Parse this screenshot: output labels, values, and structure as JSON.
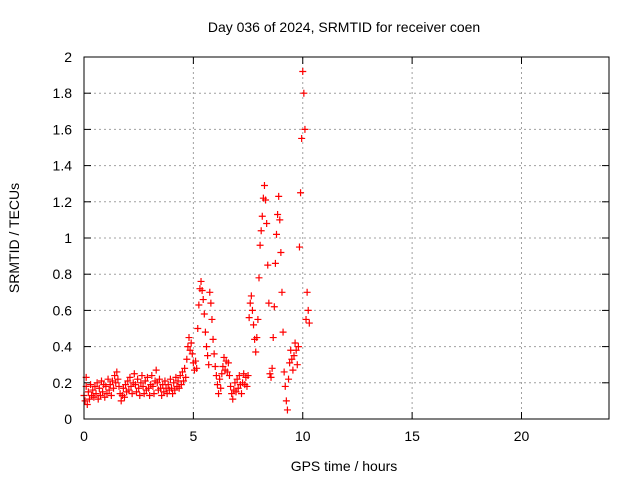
{
  "chart_data": {
    "type": "scatter",
    "title": "Day 036 of 2024, SRMTID for receiver coen",
    "xlabel": "GPS time / hours",
    "ylabel": "SRMTID / TECUs",
    "xlim": [
      0,
      24
    ],
    "ylim": [
      0,
      2
    ],
    "xticks": [
      0,
      5,
      10,
      15,
      20
    ],
    "xtick_labels": [
      "0",
      "5",
      "10",
      "15",
      "20"
    ],
    "yticks": [
      0,
      0.2,
      0.4,
      0.6,
      0.8,
      1,
      1.2,
      1.4,
      1.6,
      1.8,
      2
    ],
    "ytick_labels": [
      "0",
      "0.2",
      "0.4",
      "0.6",
      "0.8",
      "1",
      "1.2",
      "1.4",
      "1.6",
      "1.8",
      "2"
    ],
    "grid": true,
    "marker": "+",
    "series": [
      {
        "name": "SRMTID",
        "color": "#ff0000",
        "points": [
          [
            0.0,
            0.13
          ],
          [
            0.05,
            0.1
          ],
          [
            0.1,
            0.18
          ],
          [
            0.1,
            0.23
          ],
          [
            0.15,
            0.08
          ],
          [
            0.2,
            0.15
          ],
          [
            0.25,
            0.11
          ],
          [
            0.3,
            0.19
          ],
          [
            0.35,
            0.13
          ],
          [
            0.4,
            0.16
          ],
          [
            0.45,
            0.12
          ],
          [
            0.5,
            0.18
          ],
          [
            0.55,
            0.14
          ],
          [
            0.6,
            0.2
          ],
          [
            0.65,
            0.11
          ],
          [
            0.7,
            0.17
          ],
          [
            0.75,
            0.13
          ],
          [
            0.8,
            0.21
          ],
          [
            0.85,
            0.15
          ],
          [
            0.9,
            0.19
          ],
          [
            0.95,
            0.12
          ],
          [
            1.0,
            0.18
          ],
          [
            1.05,
            0.14
          ],
          [
            1.1,
            0.22
          ],
          [
            1.15,
            0.16
          ],
          [
            1.2,
            0.19
          ],
          [
            1.25,
            0.13
          ],
          [
            1.3,
            0.21
          ],
          [
            1.35,
            0.17
          ],
          [
            1.4,
            0.24
          ],
          [
            1.45,
            0.2
          ],
          [
            1.5,
            0.26
          ],
          [
            1.55,
            0.22
          ],
          [
            1.6,
            0.18
          ],
          [
            1.65,
            0.14
          ],
          [
            1.7,
            0.1
          ],
          [
            1.75,
            0.13
          ],
          [
            1.8,
            0.17
          ],
          [
            1.85,
            0.12
          ],
          [
            1.9,
            0.19
          ],
          [
            1.95,
            0.15
          ],
          [
            2.0,
            0.21
          ],
          [
            2.05,
            0.16
          ],
          [
            2.1,
            0.23
          ],
          [
            2.15,
            0.18
          ],
          [
            2.2,
            0.14
          ],
          [
            2.25,
            0.2
          ],
          [
            2.3,
            0.25
          ],
          [
            2.35,
            0.19
          ],
          [
            2.4,
            0.15
          ],
          [
            2.45,
            0.22
          ],
          [
            2.5,
            0.17
          ],
          [
            2.55,
            0.13
          ],
          [
            2.6,
            0.2
          ],
          [
            2.65,
            0.24
          ],
          [
            2.7,
            0.18
          ],
          [
            2.75,
            0.14
          ],
          [
            2.8,
            0.21
          ],
          [
            2.85,
            0.16
          ],
          [
            2.9,
            0.23
          ],
          [
            2.95,
            0.17
          ],
          [
            3.0,
            0.13
          ],
          [
            3.05,
            0.19
          ],
          [
            3.1,
            0.24
          ],
          [
            3.15,
            0.18
          ],
          [
            3.2,
            0.14
          ],
          [
            3.25,
            0.21
          ],
          [
            3.3,
            0.27
          ],
          [
            3.35,
            0.2
          ],
          [
            3.4,
            0.16
          ],
          [
            3.45,
            0.22
          ],
          [
            3.5,
            0.17
          ],
          [
            3.55,
            0.13
          ],
          [
            3.6,
            0.19
          ],
          [
            3.65,
            0.15
          ],
          [
            3.7,
            0.21
          ],
          [
            3.75,
            0.17
          ],
          [
            3.8,
            0.14
          ],
          [
            3.85,
            0.19
          ],
          [
            3.9,
            0.16
          ],
          [
            3.95,
            0.22
          ],
          [
            4.0,
            0.17
          ],
          [
            4.05,
            0.14
          ],
          [
            4.1,
            0.2
          ],
          [
            4.15,
            0.16
          ],
          [
            4.2,
            0.23
          ],
          [
            4.25,
            0.18
          ],
          [
            4.3,
            0.21
          ],
          [
            4.35,
            0.17
          ],
          [
            4.4,
            0.24
          ],
          [
            4.45,
            0.19
          ],
          [
            4.5,
            0.26
          ],
          [
            4.55,
            0.21
          ],
          [
            4.6,
            0.28
          ],
          [
            4.65,
            0.23
          ],
          [
            4.7,
            0.33
          ],
          [
            4.75,
            0.4
          ],
          [
            4.8,
            0.45
          ],
          [
            4.85,
            0.38
          ],
          [
            4.9,
            0.42
          ],
          [
            4.95,
            0.36
          ],
          [
            5.0,
            0.31
          ],
          [
            5.05,
            0.27
          ],
          [
            5.1,
            0.32
          ],
          [
            5.15,
            0.28
          ],
          [
            5.2,
            0.5
          ],
          [
            5.25,
            0.63
          ],
          [
            5.3,
            0.72
          ],
          [
            5.35,
            0.76
          ],
          [
            5.4,
            0.71
          ],
          [
            5.45,
            0.66
          ],
          [
            5.5,
            0.58
          ],
          [
            5.55,
            0.48
          ],
          [
            5.6,
            0.4
          ],
          [
            5.65,
            0.35
          ],
          [
            5.7,
            0.3
          ],
          [
            5.75,
            0.7
          ],
          [
            5.8,
            0.64
          ],
          [
            5.85,
            0.55
          ],
          [
            5.9,
            0.44
          ],
          [
            5.95,
            0.36
          ],
          [
            6.0,
            0.29
          ],
          [
            6.05,
            0.24
          ],
          [
            6.1,
            0.19
          ],
          [
            6.15,
            0.14
          ],
          [
            6.2,
            0.22
          ],
          [
            6.25,
            0.17
          ],
          [
            6.3,
            0.25
          ],
          [
            6.35,
            0.29
          ],
          [
            6.4,
            0.34
          ],
          [
            6.45,
            0.27
          ],
          [
            6.5,
            0.32
          ],
          [
            6.55,
            0.26
          ],
          [
            6.6,
            0.31
          ],
          [
            6.65,
            0.24
          ],
          [
            6.7,
            0.18
          ],
          [
            6.75,
            0.14
          ],
          [
            6.8,
            0.11
          ],
          [
            6.85,
            0.16
          ],
          [
            6.9,
            0.2
          ],
          [
            6.95,
            0.15
          ],
          [
            7.0,
            0.22
          ],
          [
            7.05,
            0.17
          ],
          [
            7.1,
            0.24
          ],
          [
            7.15,
            0.19
          ],
          [
            7.2,
            0.14
          ],
          [
            7.25,
            0.2
          ],
          [
            7.3,
            0.25
          ],
          [
            7.35,
            0.19
          ],
          [
            7.4,
            0.23
          ],
          [
            7.45,
            0.18
          ],
          [
            7.5,
            0.24
          ],
          [
            7.55,
            0.56
          ],
          [
            7.6,
            0.64
          ],
          [
            7.65,
            0.68
          ],
          [
            7.7,
            0.6
          ],
          [
            7.75,
            0.52
          ],
          [
            7.8,
            0.44
          ],
          [
            7.85,
            0.37
          ],
          [
            7.9,
            0.45
          ],
          [
            7.95,
            0.55
          ],
          [
            8.0,
            0.78
          ],
          [
            8.05,
            0.96
          ],
          [
            8.1,
            1.04
          ],
          [
            8.15,
            1.12
          ],
          [
            8.2,
            1.22
          ],
          [
            8.25,
            1.29
          ],
          [
            8.3,
            1.21
          ],
          [
            8.35,
            1.08
          ],
          [
            8.4,
            0.85
          ],
          [
            8.45,
            0.64
          ],
          [
            8.5,
            0.25
          ],
          [
            8.55,
            0.23
          ],
          [
            8.6,
            0.28
          ],
          [
            8.65,
            0.45
          ],
          [
            8.7,
            0.62
          ],
          [
            8.75,
            0.86
          ],
          [
            8.8,
            1.02
          ],
          [
            8.85,
            1.13
          ],
          [
            8.9,
            1.23
          ],
          [
            8.95,
            1.1
          ],
          [
            9.0,
            0.92
          ],
          [
            9.05,
            0.7
          ],
          [
            9.1,
            0.48
          ],
          [
            9.15,
            0.26
          ],
          [
            9.2,
            0.18
          ],
          [
            9.25,
            0.1
          ],
          [
            9.3,
            0.05
          ],
          [
            9.35,
            0.22
          ],
          [
            9.4,
            0.31
          ],
          [
            9.45,
            0.38
          ],
          [
            9.5,
            0.33
          ],
          [
            9.55,
            0.27
          ],
          [
            9.6,
            0.35
          ],
          [
            9.65,
            0.42
          ],
          [
            9.7,
            0.38
          ],
          [
            9.75,
            0.3
          ],
          [
            9.8,
            0.4
          ],
          [
            9.85,
            0.95
          ],
          [
            9.9,
            1.25
          ],
          [
            9.95,
            1.55
          ],
          [
            10.0,
            1.92
          ],
          [
            10.05,
            1.8
          ],
          [
            10.1,
            1.6
          ],
          [
            10.15,
            0.55
          ],
          [
            10.2,
            0.7
          ],
          [
            10.25,
            0.6
          ],
          [
            10.3,
            0.53
          ]
        ]
      }
    ]
  }
}
